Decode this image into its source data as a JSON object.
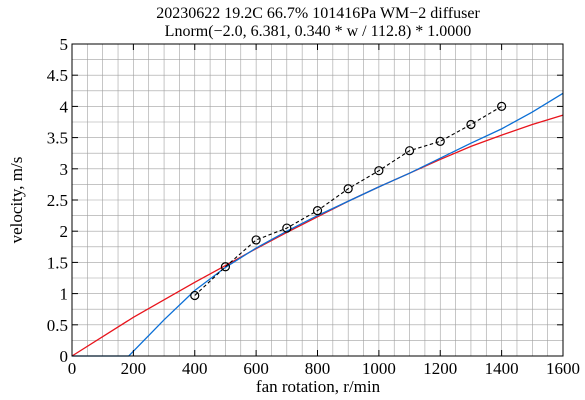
{
  "chart_data": {
    "type": "line",
    "title": "20230622 19.2C 66.7% 101416Pa WM−2 diffuser",
    "subtitle": "Lnorm(−2.0, 6.381, 0.340 * w / 112.8) * 1.0000",
    "xlabel": "fan rotation, r/min",
    "ylabel": "velocity, m/s",
    "xlim": [
      0,
      1600
    ],
    "ylim": [
      0,
      5
    ],
    "grid": true,
    "x_ticks": [
      "0",
      "200",
      "400",
      "600",
      "800",
      "1000",
      "1200",
      "1400",
      "1600"
    ],
    "y_ticks": [
      "0",
      "0.5",
      "1",
      "1.5",
      "2",
      "2.5",
      "3",
      "3.5",
      "4",
      "4.5",
      "5"
    ],
    "series": [
      {
        "color": "#000000",
        "style": "dashed-with-circle-markers",
        "points": [
          [
            400,
            0.97
          ],
          [
            500,
            1.43
          ],
          [
            600,
            1.86
          ],
          [
            700,
            2.05
          ],
          [
            800,
            2.33
          ],
          [
            900,
            2.68
          ],
          [
            1000,
            2.97
          ],
          [
            1100,
            3.29
          ],
          [
            1200,
            3.44
          ],
          [
            1300,
            3.71
          ],
          [
            1400,
            4.0
          ]
        ]
      },
      {
        "color": "#e8141c",
        "style": "solid",
        "points": [
          [
            0,
            0.0
          ],
          [
            200,
            0.62
          ],
          [
            400,
            1.18
          ],
          [
            500,
            1.45
          ],
          [
            600,
            1.72
          ],
          [
            700,
            1.98
          ],
          [
            800,
            2.23
          ],
          [
            900,
            2.48
          ],
          [
            1000,
            2.71
          ],
          [
            1100,
            2.93
          ],
          [
            1200,
            3.15
          ],
          [
            1300,
            3.36
          ],
          [
            1400,
            3.54
          ],
          [
            1500,
            3.71
          ],
          [
            1600,
            3.86
          ]
        ]
      },
      {
        "color": "#0b6fd6",
        "style": "solid",
        "points": [
          [
            0,
            0.0
          ],
          [
            185,
            0.0
          ],
          [
            300,
            0.58
          ],
          [
            400,
            1.05
          ],
          [
            500,
            1.42
          ],
          [
            600,
            1.73
          ],
          [
            700,
            2.0
          ],
          [
            800,
            2.25
          ],
          [
            900,
            2.48
          ],
          [
            1000,
            2.71
          ],
          [
            1100,
            2.93
          ],
          [
            1200,
            3.17
          ],
          [
            1300,
            3.41
          ],
          [
            1400,
            3.64
          ],
          [
            1500,
            3.91
          ],
          [
            1600,
            4.21
          ]
        ]
      }
    ]
  }
}
